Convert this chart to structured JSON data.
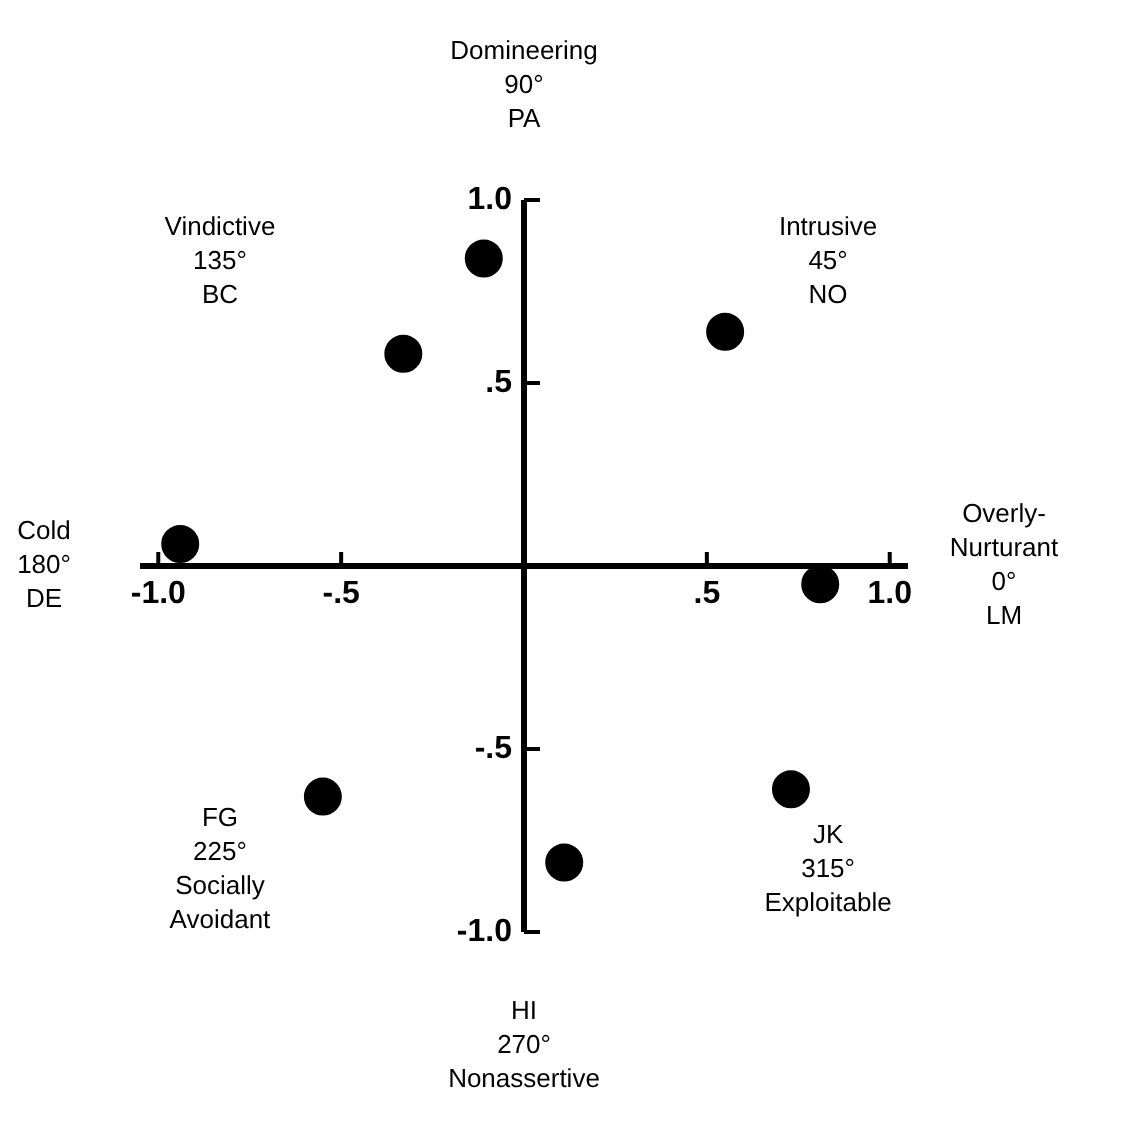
{
  "chart_data": {
    "type": "scatter",
    "x": [
      -0.11,
      0.55,
      -0.33,
      -0.94,
      0.81,
      -0.55,
      0.73,
      0.11
    ],
    "values": [
      0.84,
      0.64,
      0.58,
      0.06,
      -0.05,
      -0.63,
      -0.61,
      -0.81
    ],
    "color": "#000000",
    "marker": "circle",
    "legend": false,
    "xlim": [
      -1.05,
      1.05
    ],
    "ylim": [
      -1.0,
      1.0
    ],
    "xticks": [
      {
        "value": -1,
        "label": "-1.0"
      },
      {
        "value": -0.5,
        "label": "-.5"
      },
      {
        "value": 0.5,
        "label": ".5"
      },
      {
        "value": 1,
        "label": "1.0"
      }
    ],
    "yticks": [
      {
        "value": 1,
        "label": "1.0"
      },
      {
        "value": 0.5,
        "label": ".5"
      },
      {
        "value": -0.5,
        "label": "-.5"
      },
      {
        "value": -1,
        "label": "-1.0"
      }
    ],
    "annotations": [
      "Overly-\nNurturant\n0°\nLM",
      "Intrusive\n45°\nNO",
      "Domineering\n90°\nPA",
      "Vindictive\n135°\nBC",
      "Cold\n180°\nDE",
      "FG\n225°\nSocially\nAvoidant",
      "HI\n270°\nNonassertive",
      "JK\n315°\nExploitable"
    ]
  }
}
